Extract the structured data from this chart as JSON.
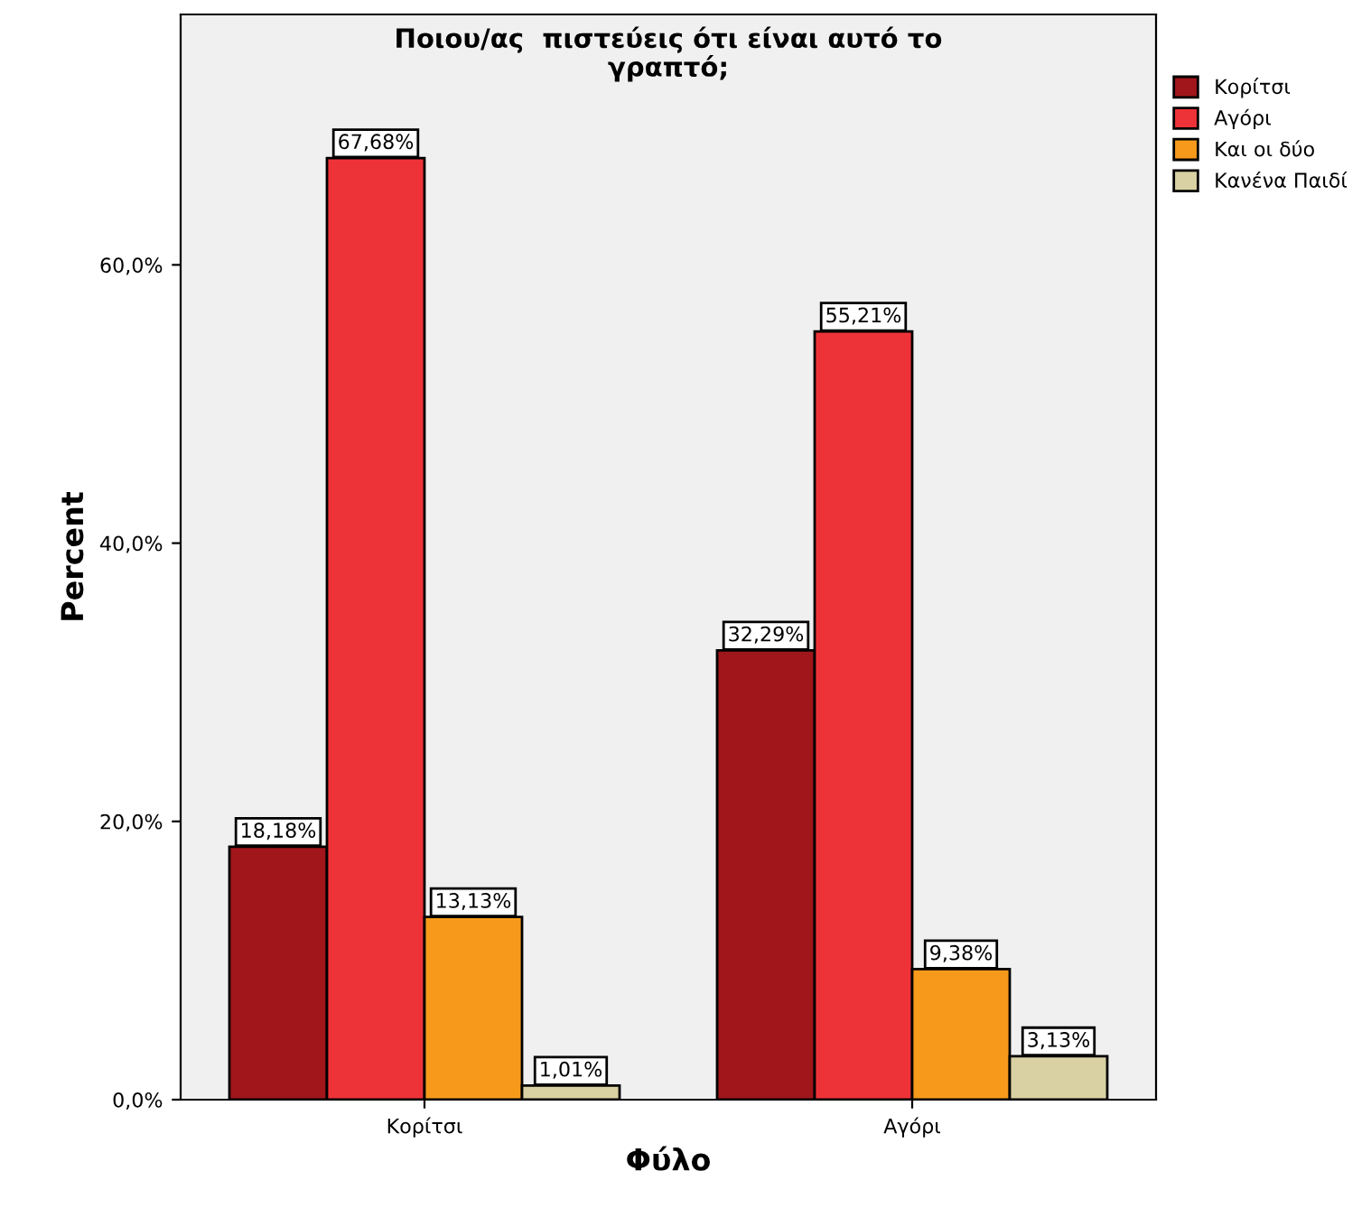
{
  "chart_data": {
    "type": "bar",
    "title": "Ποιου/ας  πιστεύεις ότι είναι αυτό το\nγραπτό;",
    "xlabel": "Φύλο",
    "ylabel": "Percent",
    "categories": [
      "Κορίτσι",
      "Αγόρι"
    ],
    "series": [
      {
        "name": "Κορίτσι",
        "color": "#a0161b",
        "values": [
          18.18,
          32.29
        ],
        "value_labels": [
          "18,18%",
          "32,29%"
        ]
      },
      {
        "name": "Αγόρι",
        "color": "#ee3338",
        "values": [
          67.68,
          55.21
        ],
        "value_labels": [
          "67,68%",
          "55,21%"
        ]
      },
      {
        "name": "Και οι δύο",
        "color": "#f79a1c",
        "values": [
          13.13,
          9.38
        ],
        "value_labels": [
          "13,13%",
          "9,38%"
        ]
      },
      {
        "name": "Κανένα Παιδί",
        "color": "#d9d1a3",
        "values": [
          1.01,
          3.13
        ],
        "value_labels": [
          "1,01%",
          "3,13%"
        ]
      }
    ],
    "ylim": [
      0,
      78
    ],
    "yticks": [
      {
        "value": 0,
        "label": "0,0%"
      },
      {
        "value": 20,
        "label": "20,0%"
      },
      {
        "value": 40,
        "label": "40,0%"
      },
      {
        "value": 60,
        "label": "60,0%"
      }
    ],
    "grid": false,
    "legend": "top right"
  }
}
